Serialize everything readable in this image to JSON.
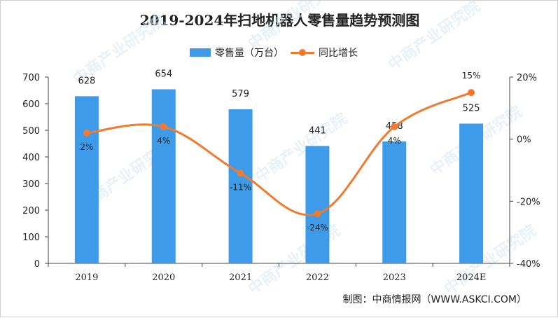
{
  "chart_data": {
    "type": "bar",
    "title": "2019-2024年扫地机器人零售量趋势预测图",
    "categories": [
      "2019",
      "2020",
      "2021",
      "2022",
      "2023",
      "2024E"
    ],
    "series": [
      {
        "name": "零售量（万台）",
        "type": "bar",
        "axis": "left",
        "values": [
          628,
          654,
          579,
          441,
          458,
          525
        ]
      },
      {
        "name": "同比增长",
        "type": "line",
        "axis": "right",
        "values": [
          2,
          4,
          -11,
          -24,
          4,
          15
        ],
        "unit": "%"
      }
    ],
    "left_axis": {
      "ylim": [
        0,
        700
      ],
      "ticks": [
        "0",
        "100",
        "200",
        "300",
        "400",
        "500",
        "600",
        "700"
      ]
    },
    "right_axis": {
      "ylim": [
        -40,
        20
      ],
      "ticks": [
        "-40%",
        "-20%",
        "0%",
        "20%"
      ]
    },
    "legend_position": "top-center",
    "grid": false
  },
  "source": "制图：中商情报网（WWW.ASKCI.COM）",
  "watermark": "中商产业研究院",
  "colors": {
    "bar": "#3d9be9",
    "line": "#f07a30",
    "text": "#222222"
  }
}
